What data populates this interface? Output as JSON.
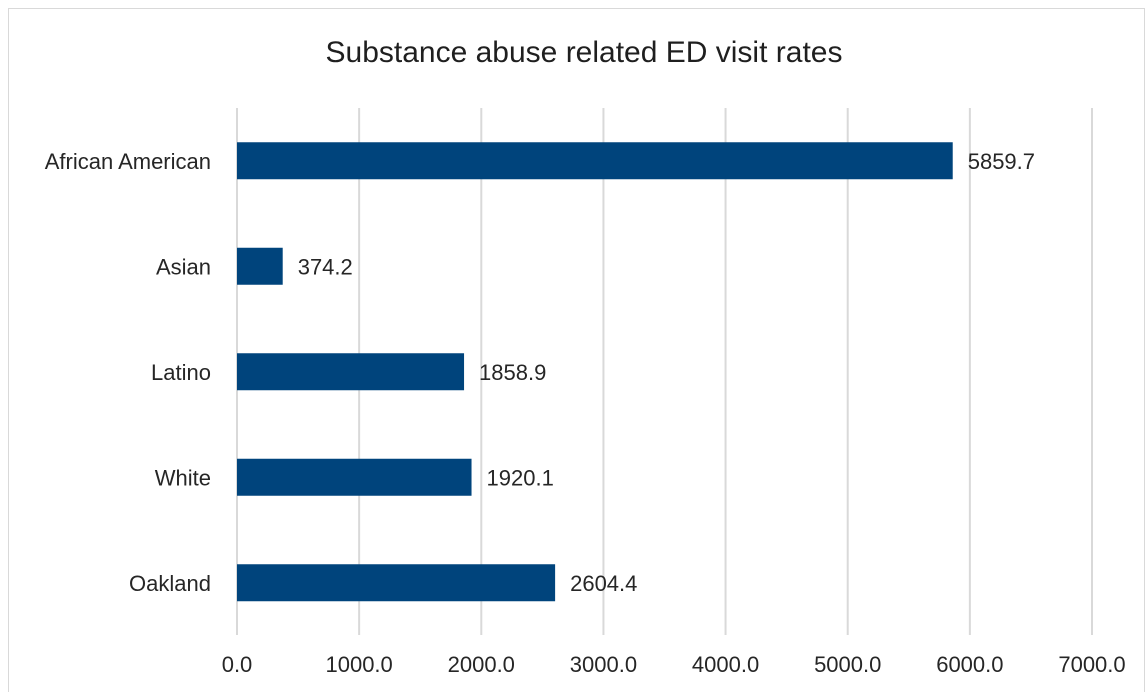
{
  "chart_data": {
    "type": "bar",
    "orientation": "horizontal",
    "title": "Substance abuse related ED visit rates",
    "xlabel": "",
    "ylabel": "",
    "categories": [
      "African American",
      "Asian",
      "Latino",
      "White",
      "Oakland"
    ],
    "values": [
      5859.7,
      374.2,
      1858.9,
      1920.1,
      2604.4
    ],
    "value_labels": [
      "5859.7",
      "374.2",
      "1858.9",
      "1920.1",
      "2604.4"
    ],
    "xlim": [
      0,
      7000
    ],
    "ticks": [
      0,
      1000,
      2000,
      3000,
      4000,
      5000,
      6000,
      7000
    ],
    "tick_labels": [
      "0.0",
      "1000.0",
      "2000.0",
      "3000.0",
      "4000.0",
      "5000.0",
      "6000.0",
      "7000.0"
    ],
    "grid": true,
    "legend": "none",
    "bar_color": "#00447c",
    "grid_color": "#d9d9d9"
  }
}
